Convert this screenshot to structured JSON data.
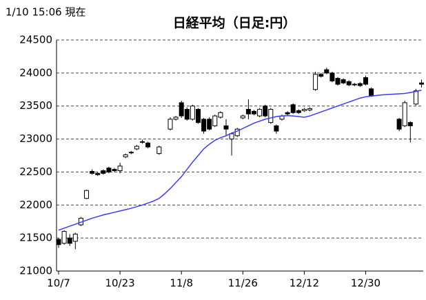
{
  "chart_data": {
    "type": "candlestick",
    "title": "日経平均（日足:円）",
    "timestamp": "1/10 15:06 現在",
    "categories": [
      "10/7",
      null,
      null,
      null,
      null,
      null,
      null,
      null,
      null,
      null,
      null,
      "10/23",
      null,
      null,
      null,
      null,
      null,
      null,
      null,
      null,
      null,
      null,
      "11/8",
      null,
      null,
      null,
      null,
      null,
      null,
      null,
      null,
      null,
      null,
      "11/26",
      null,
      null,
      null,
      null,
      null,
      null,
      null,
      null,
      null,
      null,
      "12/12",
      null,
      null,
      null,
      null,
      null,
      null,
      null,
      null,
      null,
      null,
      "12/30",
      null,
      null,
      null,
      null,
      null,
      null,
      null,
      null,
      null,
      null
    ],
    "open": [
      21480,
      21420,
      21500,
      21450,
      21700,
      22100,
      22510,
      22480,
      22520,
      22560,
      22540,
      22520,
      22730,
      22790,
      22850,
      22960,
      22940,
      null,
      22780,
      null,
      23150,
      23300,
      23550,
      23450,
      23300,
      23450,
      23300,
      23300,
      23200,
      23330,
      23200,
      23000,
      23050,
      23320,
      23450,
      23420,
      23350,
      23500,
      23250,
      23200,
      23300,
      23400,
      23520,
      23430,
      23430,
      23440,
      23750,
      23980,
      24050,
      24000,
      23920,
      23900,
      23870,
      23830,
      23840,
      23930,
      23760,
      null,
      null,
      null,
      null,
      23300,
      23200,
      23250,
      23530,
      23850
    ],
    "high": [
      21500,
      21620,
      21560,
      21580,
      21820,
      22230,
      22540,
      22500,
      22540,
      22580,
      22560,
      22640,
      22780,
      22820,
      22910,
      22990,
      22960,
      null,
      22900,
      null,
      23330,
      23350,
      23580,
      23480,
      23520,
      23470,
      23320,
      23330,
      23370,
      23420,
      23300,
      23100,
      23170,
      23370,
      23600,
      23440,
      23470,
      23520,
      23470,
      23220,
      23370,
      23420,
      23540,
      23450,
      23470,
      23480,
      24020,
      24000,
      24080,
      24020,
      23940,
      23920,
      23890,
      23850,
      23860,
      23960,
      23780,
      null,
      null,
      null,
      null,
      23320,
      23580,
      23270,
      23760,
      23900
    ],
    "low": [
      21350,
      21400,
      21380,
      21330,
      21680,
      22090,
      22460,
      22440,
      22460,
      22480,
      22500,
      22480,
      22710,
      22770,
      22830,
      22930,
      22860,
      null,
      22760,
      null,
      23130,
      23280,
      23320,
      23280,
      23280,
      23230,
      23080,
      23130,
      23180,
      23310,
      23050,
      22750,
      23030,
      23300,
      23300,
      23360,
      23330,
      23330,
      23230,
      23080,
      23280,
      23360,
      23380,
      23380,
      23410,
      23420,
      23730,
      23930,
      23980,
      23860,
      23810,
      23830,
      23800,
      23800,
      23790,
      23810,
      23640,
      null,
      null,
      null,
      null,
      23120,
      23180,
      22950,
      23510,
      23780
    ],
    "close": [
      21400,
      21600,
      21420,
      21560,
      21800,
      22220,
      22480,
      22460,
      22480,
      22500,
      22520,
      22590,
      22760,
      22800,
      22890,
      22950,
      22880,
      null,
      22880,
      null,
      23300,
      23330,
      23350,
      23300,
      23500,
      23250,
      23120,
      23150,
      23350,
      23400,
      23150,
      23080,
      23150,
      23350,
      23380,
      23380,
      23450,
      23350,
      23450,
      23120,
      23350,
      23380,
      23400,
      23400,
      23450,
      23460,
      23980,
      23950,
      24000,
      23880,
      23830,
      23850,
      23820,
      23820,
      23810,
      23830,
      23660,
      null,
      null,
      null,
      null,
      23150,
      23550,
      23200,
      23730,
      23830
    ],
    "moving_average": {
      "color": "#3a3aff",
      "values": [
        21620,
        21650,
        21680,
        21710,
        21740,
        21770,
        21800,
        21825,
        21850,
        21870,
        21890,
        21910,
        21930,
        21950,
        21975,
        22000,
        22030,
        22060,
        22100,
        22170,
        22250,
        22340,
        22430,
        22540,
        22650,
        22750,
        22850,
        22920,
        22980,
        23020,
        23050,
        23090,
        23120,
        23160,
        23200,
        23240,
        23270,
        23300,
        23320,
        23340,
        23350,
        23355,
        23350,
        23340,
        23330,
        23350,
        23380,
        23410,
        23440,
        23470,
        23500,
        23530,
        23560,
        23590,
        23620,
        23640,
        23650,
        23660,
        23670,
        23675,
        23680,
        23685,
        23690,
        23705,
        23720,
        23740
      ]
    },
    "ylim": [
      21000,
      24500
    ],
    "yticks": [
      21000,
      21500,
      22000,
      22500,
      23000,
      23500,
      24000,
      24500
    ],
    "grid": true
  }
}
